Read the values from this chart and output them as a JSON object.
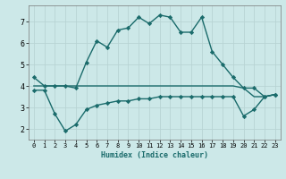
{
  "xlabel": "Humidex (Indice chaleur)",
  "background_color": "#cce8e8",
  "grid_color": "#b8d4d4",
  "line_color": "#1a6b6b",
  "x_main": [
    0,
    1,
    2,
    3,
    4,
    5,
    6,
    7,
    8,
    9,
    10,
    11,
    12,
    13,
    14,
    15,
    16,
    17,
    18,
    19,
    20,
    21,
    22,
    23
  ],
  "y_main": [
    4.4,
    4.0,
    4.0,
    4.0,
    3.9,
    5.1,
    6.1,
    5.8,
    6.6,
    6.7,
    7.2,
    6.9,
    7.3,
    7.2,
    6.5,
    6.5,
    7.2,
    5.6,
    5.0,
    4.4,
    3.9,
    3.9,
    3.5,
    3.6
  ],
  "x_line2": [
    0,
    1,
    2,
    3,
    4,
    5,
    6,
    7,
    8,
    9,
    10,
    11,
    12,
    13,
    14,
    15,
    16,
    17,
    18,
    19,
    20,
    21,
    22,
    23
  ],
  "y_line2": [
    4.0,
    4.0,
    4.0,
    4.0,
    4.0,
    4.0,
    4.0,
    4.0,
    4.0,
    4.0,
    4.0,
    4.0,
    4.0,
    4.0,
    4.0,
    4.0,
    4.0,
    4.0,
    4.0,
    4.0,
    3.9,
    3.5,
    3.5,
    3.6
  ],
  "x_line3": [
    0,
    1,
    2,
    3,
    4,
    5,
    6,
    7,
    8,
    9,
    10,
    11,
    12,
    13,
    14,
    15,
    16,
    17,
    18,
    19,
    20,
    21,
    22,
    23
  ],
  "y_line3": [
    3.8,
    3.8,
    2.7,
    1.9,
    2.2,
    2.9,
    3.1,
    3.2,
    3.3,
    3.3,
    3.4,
    3.4,
    3.5,
    3.5,
    3.5,
    3.5,
    3.5,
    3.5,
    3.5,
    3.5,
    2.6,
    2.9,
    3.5,
    3.6
  ],
  "xlim": [
    -0.5,
    23.5
  ],
  "ylim": [
    1.5,
    7.75
  ],
  "yticks": [
    2,
    3,
    4,
    5,
    6,
    7
  ],
  "xticks": [
    0,
    1,
    2,
    3,
    4,
    5,
    6,
    7,
    8,
    9,
    10,
    11,
    12,
    13,
    14,
    15,
    16,
    17,
    18,
    19,
    20,
    21,
    22,
    23
  ],
  "marker": "D",
  "marker_size": 2.2,
  "line_width": 1.0
}
